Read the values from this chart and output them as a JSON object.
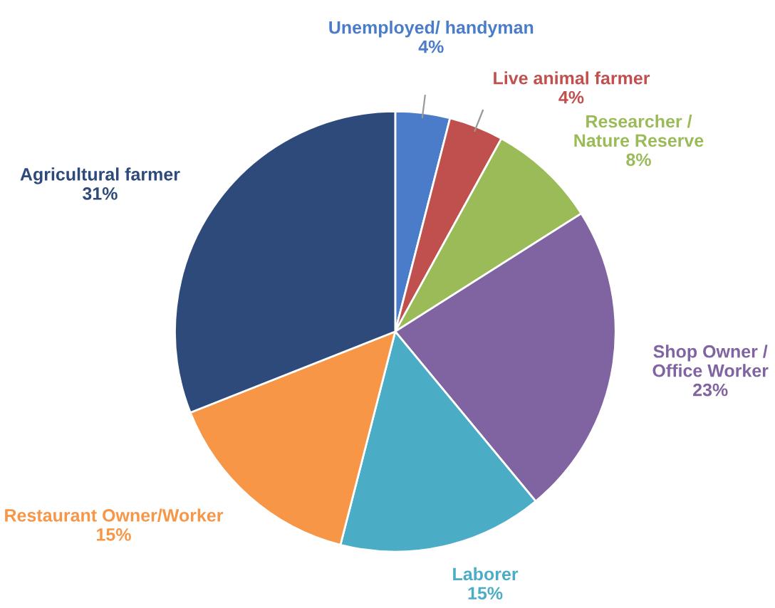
{
  "chart_data": {
    "type": "pie",
    "categories": [
      "Unemployed/ handyman",
      "Live animal farmer",
      "Researcher /\nNature Reserve",
      "Shop Owner /\nOffice Worker",
      "Laborer",
      "Restaurant Owner/Worker",
      "Agricultural farmer"
    ],
    "values": [
      4,
      4,
      8,
      23,
      15,
      15,
      31
    ],
    "value_labels": [
      "4%",
      "4%",
      "8%",
      "23%",
      "15%",
      "15%",
      "31%"
    ],
    "colors": [
      "#4a7cc9",
      "#c0504d",
      "#9bbb59",
      "#8064a2",
      "#4bacc6",
      "#f79646",
      "#2e4a7a"
    ]
  }
}
